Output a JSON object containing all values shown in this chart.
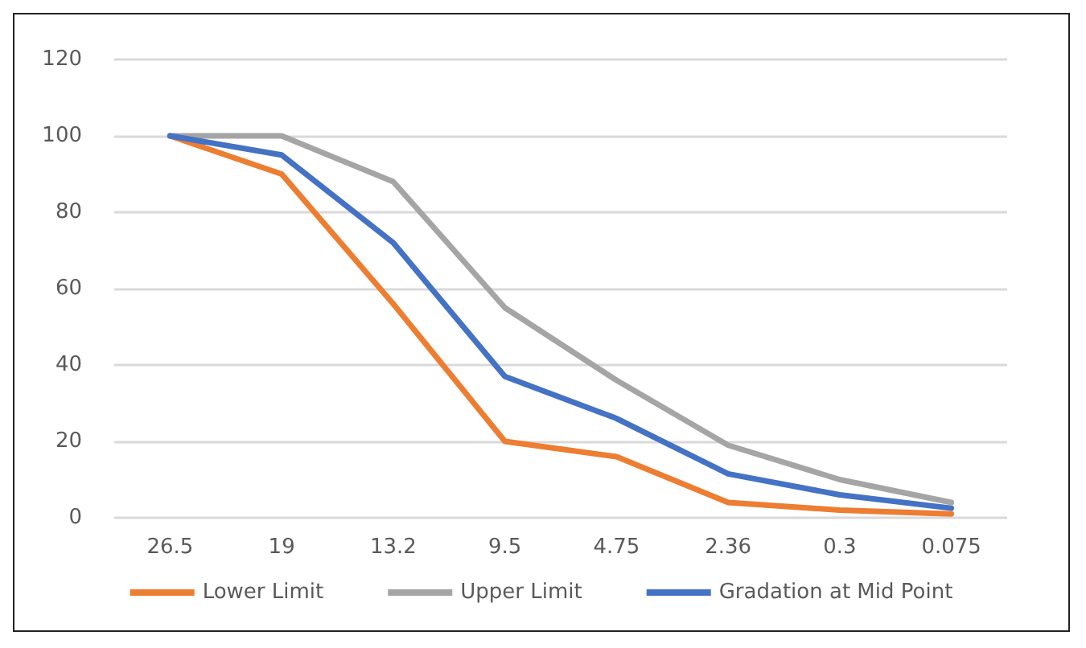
{
  "chart_data": {
    "type": "line",
    "categories": [
      "26.5",
      "19",
      "13.2",
      "9.5",
      "4.75",
      "2.36",
      "0.3",
      "0.075"
    ],
    "series": [
      {
        "name": "Lower Limit",
        "color": "#ed7d31",
        "values": [
          100,
          90,
          56,
          20,
          16,
          4,
          2,
          1
        ]
      },
      {
        "name": "Upper Limit",
        "color": "#a5a5a5",
        "values": [
          100,
          100,
          88,
          55,
          36,
          19,
          10,
          4
        ]
      },
      {
        "name": "Gradation at Mid Point",
        "color": "#4472c4",
        "values": [
          100,
          95,
          72,
          37,
          26,
          11.5,
          6,
          2.5
        ]
      }
    ],
    "ylim": [
      0,
      120
    ],
    "yticks": [
      0,
      20,
      40,
      60,
      80,
      100,
      120
    ],
    "grid": "y",
    "legend": "bottom",
    "marker": "none",
    "line_style": "solid"
  }
}
